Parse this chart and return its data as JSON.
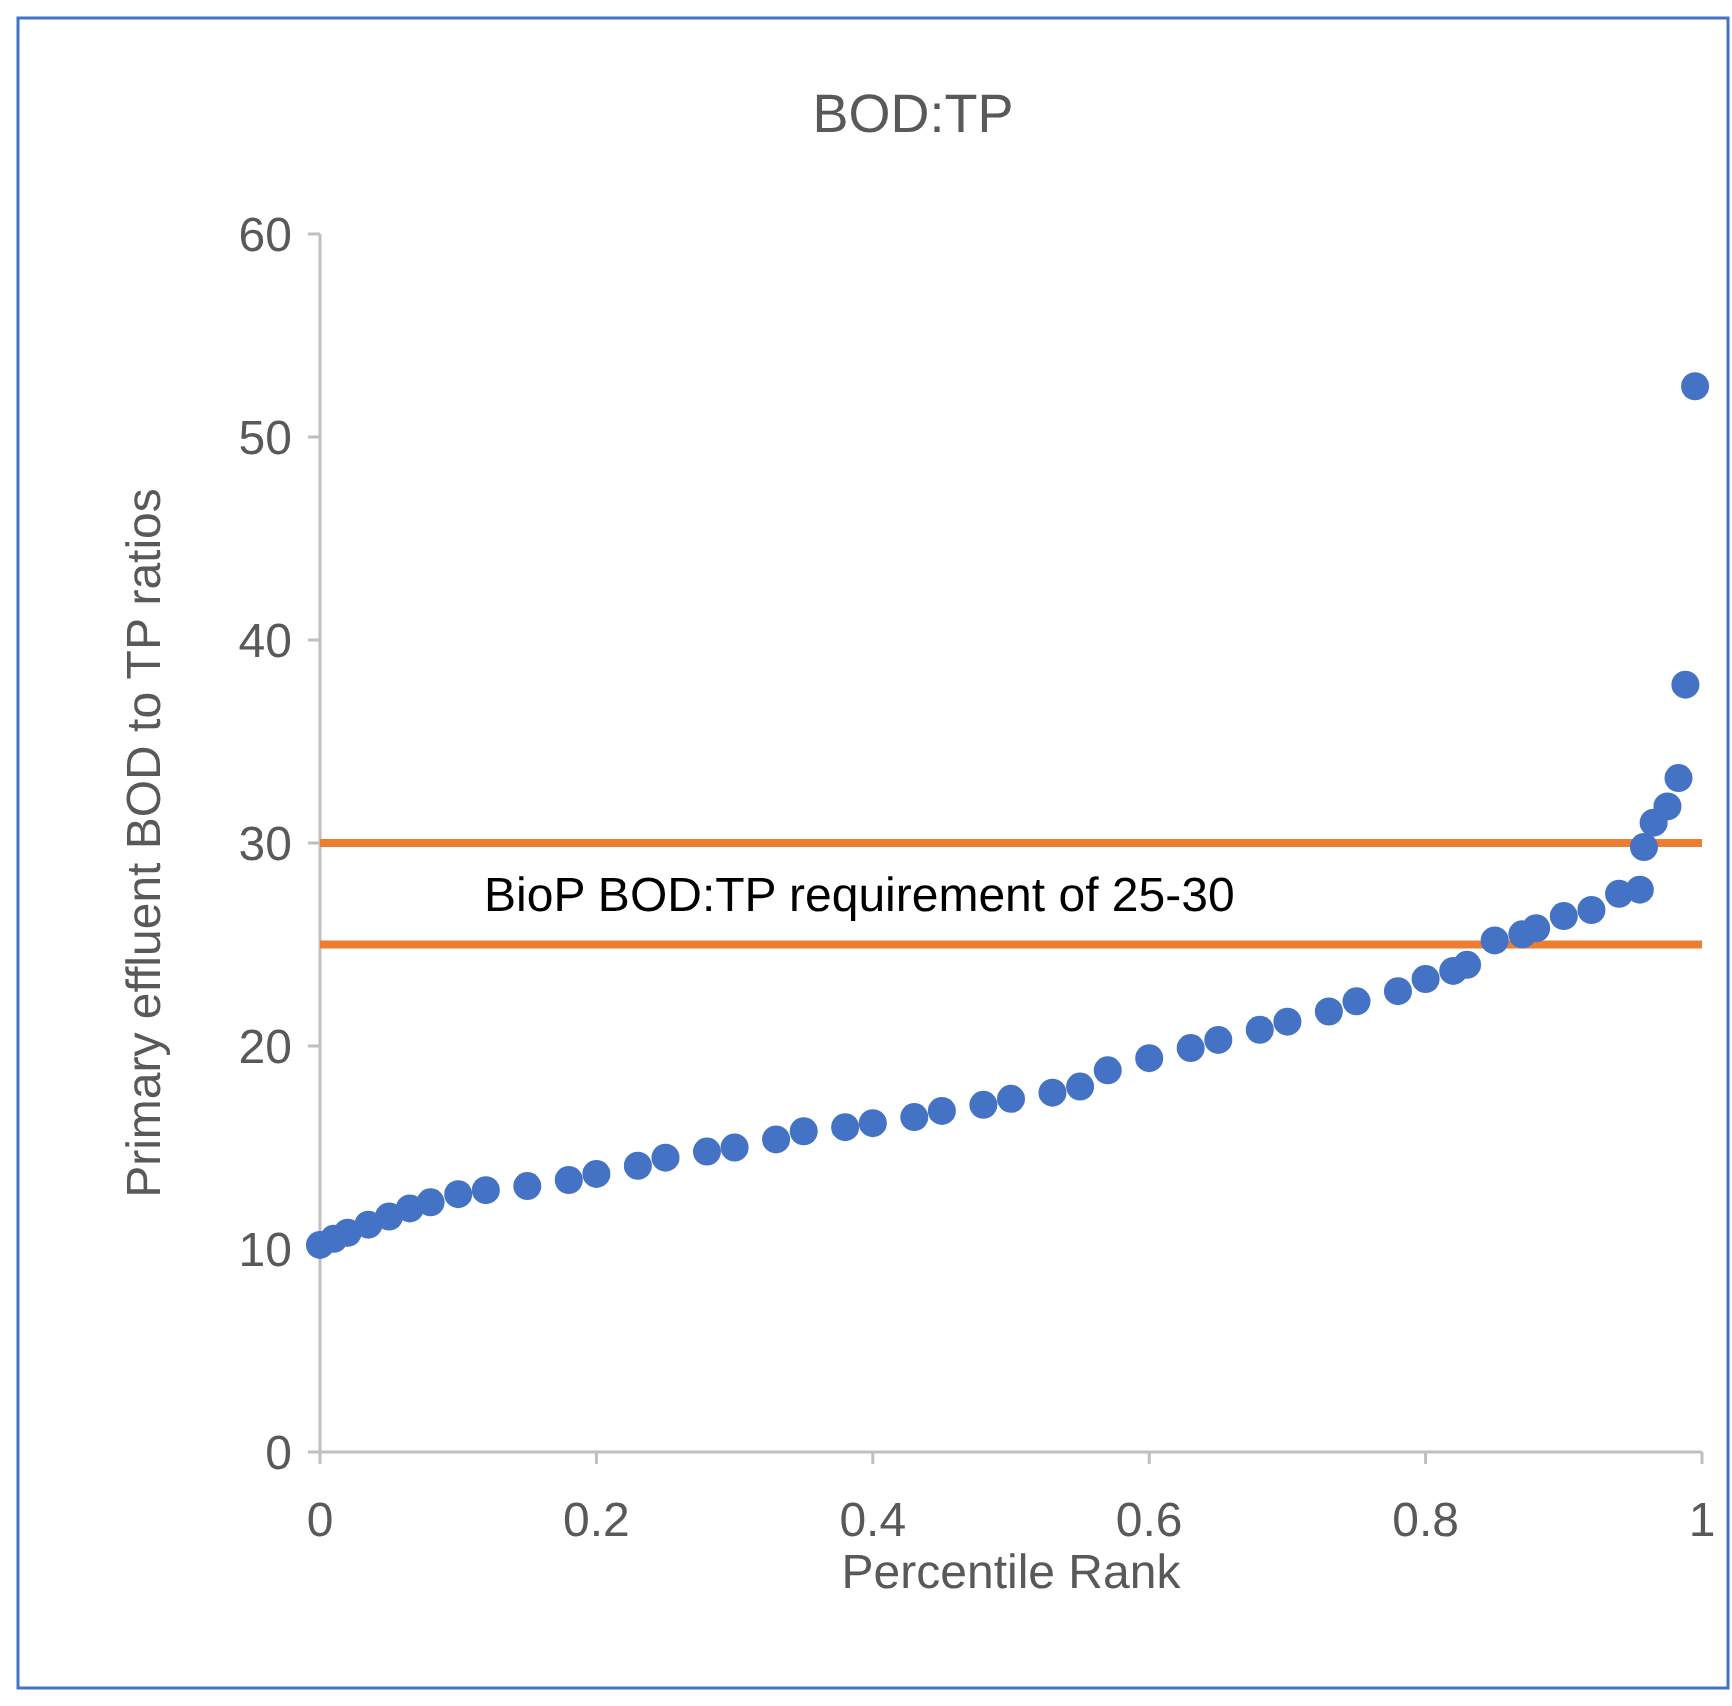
{
  "chart_data": {
    "type": "scatter",
    "title": "BOD:TP",
    "xlabel": "Percentile Rank",
    "ylabel": "Primary effluent BOD to TP ratios",
    "xlim": [
      0,
      1
    ],
    "xticks": [
      0,
      0.2,
      0.4,
      0.6,
      0.8,
      1
    ],
    "ylim": [
      0,
      60
    ],
    "yticks": [
      0,
      10,
      20,
      30,
      40,
      50,
      60
    ],
    "grid": false,
    "marker": "circle",
    "series": [
      {
        "color": "#4472c4",
        "x": [
          0,
          0.01,
          0.02,
          0.035,
          0.05,
          0.065,
          0.08,
          0.1,
          0.12,
          0.15,
          0.18,
          0.2,
          0.23,
          0.25,
          0.28,
          0.3,
          0.33,
          0.35,
          0.38,
          0.4,
          0.43,
          0.45,
          0.48,
          0.5,
          0.53,
          0.55,
          0.57,
          0.6,
          0.63,
          0.65,
          0.68,
          0.7,
          0.73,
          0.75,
          0.78,
          0.8,
          0.82,
          0.83,
          0.85,
          0.87,
          0.88,
          0.9,
          0.92,
          0.94,
          0.955,
          0.958,
          0.965,
          0.975,
          0.983,
          0.988,
          0.995
        ],
        "values": [
          10.2,
          10.5,
          10.8,
          11.2,
          11.6,
          12,
          12.3,
          12.7,
          12.9,
          13.1,
          13.4,
          13.7,
          14.1,
          14.5,
          14.8,
          15,
          15.4,
          15.8,
          16,
          16.2,
          16.5,
          16.8,
          17.1,
          17.4,
          17.7,
          18,
          18.8,
          19.4,
          19.9,
          20.3,
          20.8,
          21.2,
          21.7,
          22.2,
          22.7,
          23.3,
          23.7,
          24,
          25.2,
          25.5,
          25.8,
          26.4,
          26.7,
          27.5,
          27.7,
          29.8,
          31,
          31.8,
          33.2,
          37.8,
          52.5
        ]
      }
    ],
    "ref_lines": [
      {
        "axis": "y",
        "value": 30,
        "color": "#ed7d31"
      },
      {
        "axis": "y",
        "value": 25,
        "color": "#ed7d31"
      }
    ],
    "annotations": [
      "BioP BOD:TP requirement of 25-30"
    ]
  }
}
